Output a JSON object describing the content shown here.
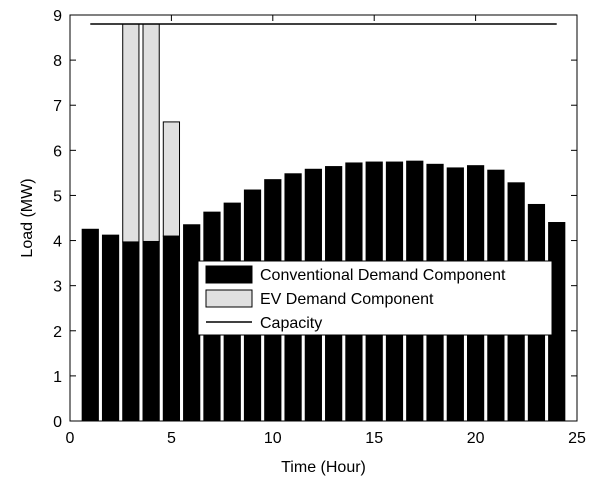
{
  "chart_data": {
    "type": "bar",
    "stacked": true,
    "title": "",
    "xlabel": "Time (Hour)",
    "ylabel": "Load (MW)",
    "xlim": [
      0,
      25
    ],
    "ylim": [
      0,
      9
    ],
    "x_ticks": [
      0,
      5,
      10,
      15,
      20,
      25
    ],
    "y_ticks": [
      0,
      1,
      2,
      3,
      4,
      5,
      6,
      7,
      8,
      9
    ],
    "grid": false,
    "legend_position": "center-right",
    "x": [
      1,
      2,
      3,
      4,
      5,
      6,
      7,
      8,
      9,
      10,
      11,
      12,
      13,
      14,
      15,
      16,
      17,
      18,
      19,
      20,
      21,
      22,
      23,
      24
    ],
    "series": [
      {
        "name": "Conventional Demand Component",
        "color": "#000000",
        "values": [
          4.25,
          4.12,
          3.97,
          3.98,
          4.1,
          4.35,
          4.63,
          4.83,
          5.12,
          5.35,
          5.48,
          5.58,
          5.64,
          5.72,
          5.74,
          5.74,
          5.76,
          5.69,
          5.61,
          5.66,
          5.56,
          5.28,
          4.8,
          4.4
        ]
      },
      {
        "name": "EV Demand Component",
        "color": "#e0e0e0",
        "values": [
          0,
          0,
          4.83,
          4.82,
          2.53,
          0,
          0,
          0,
          0,
          0,
          0,
          0,
          0,
          0,
          0,
          0,
          0,
          0,
          0,
          0,
          0,
          0,
          0,
          0
        ]
      }
    ],
    "lines": [
      {
        "name": "Capacity",
        "color": "#000000",
        "x": [
          1,
          24
        ],
        "y": [
          8.8,
          8.8
        ]
      }
    ],
    "legend": {
      "items": [
        {
          "label": "Conventional Demand Component",
          "swatch": "#000000",
          "kind": "bar"
        },
        {
          "label": "EV Demand Component",
          "swatch": "#e0e0e0",
          "kind": "bar"
        },
        {
          "label": "Capacity",
          "swatch": "#000000",
          "kind": "line"
        }
      ]
    }
  }
}
